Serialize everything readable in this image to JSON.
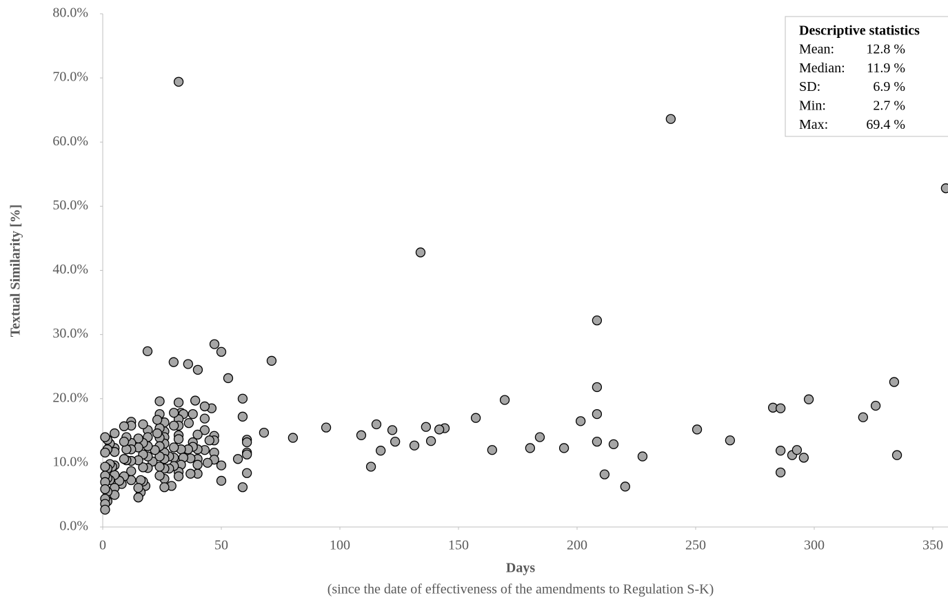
{
  "chart_data": {
    "type": "scatter",
    "xlabel": "Days",
    "xlabel_sub": "(since the date of effectiveness of the amendments to Regulation S-K)",
    "ylabel": "Textual Similarity [%]",
    "xlim": [
      0,
      356.4
    ],
    "ylim": [
      0,
      80
    ],
    "xticks": [
      0,
      50,
      100,
      150,
      200,
      250,
      300,
      350
    ],
    "yticks": [
      {
        "value": 0,
        "label": "0.0%"
      },
      {
        "value": 10,
        "label": "10.0%"
      },
      {
        "value": 20,
        "label": "20.0%"
      },
      {
        "value": 30,
        "label": "30.0%"
      },
      {
        "value": 40,
        "label": "40.0%"
      },
      {
        "value": 50,
        "label": "50.0%"
      },
      {
        "value": 60,
        "label": "60.0%"
      },
      {
        "value": 70,
        "label": "70.0%"
      },
      {
        "value": 80,
        "label": "80.0%"
      }
    ],
    "grid": false,
    "marker_color": "#a6a6a6",
    "stats": {
      "title": "Descriptive statistics",
      "rows": [
        {
          "label": "Mean:",
          "value": "12.8 %"
        },
        {
          "label": "Median:",
          "value": "11.9 %"
        },
        {
          "label": "SD:",
          "value": "6.9 %"
        },
        {
          "label": "Min:",
          "value": "2.7 %"
        },
        {
          "label": "Max:",
          "value": "69.4 %"
        }
      ]
    },
    "x": [
      32,
      239.5,
      355.5,
      134,
      208.4,
      208.4,
      208.4,
      201.5,
      208.4,
      215.4,
      211.6,
      220.3,
      227.6,
      250.6,
      264.5,
      282.6,
      285.8,
      285.8,
      285.8,
      290.7,
      292.7,
      295.6,
      297.7,
      320.6,
      325.9,
      333.7,
      334.9,
      194.5,
      184.3,
      180.2,
      169.5,
      164.2,
      157.3,
      144.2,
      141.9,
      138.4,
      136.3,
      131.4,
      123.3,
      122.1,
      117.2,
      115.4,
      113.1,
      109,
      94.2,
      80.2,
      68,
      71.2,
      52.9,
      50,
      47.1,
      40.1,
      36,
      29.9,
      18.9,
      59,
      59,
      60.8,
      60.8,
      60.8,
      60.8,
      60.8,
      59,
      57,
      50,
      50,
      45.9,
      47,
      47,
      47,
      47,
      45,
      43,
      43,
      43,
      43,
      44.2,
      40,
      40,
      40,
      40,
      40,
      39,
      38,
      36.3,
      38,
      38,
      37,
      37,
      36,
      32,
      33,
      34,
      32,
      32,
      32,
      32,
      33,
      34,
      33,
      32,
      32,
      30,
      30,
      30,
      30,
      30,
      29,
      28,
      28,
      26,
      26,
      26,
      26,
      26,
      26,
      26,
      26,
      26,
      24,
      24,
      24,
      24,
      24,
      24,
      24,
      24,
      23,
      23,
      22,
      21,
      19,
      19,
      19,
      19,
      19,
      17,
      17,
      17,
      17,
      18,
      17,
      16,
      16,
      15,
      15,
      15,
      15,
      15,
      12,
      12,
      12,
      12,
      12,
      12,
      12,
      10,
      10,
      10,
      9,
      9,
      9,
      9,
      8,
      7,
      5,
      5,
      5,
      5,
      5,
      5,
      5,
      4,
      3,
      3,
      3,
      2,
      2,
      2,
      2,
      2,
      2,
      1,
      1,
      1,
      1,
      1,
      1,
      1,
      1,
      1
    ],
    "y": [
      69.4,
      63.6,
      52.8,
      42.8,
      32.2,
      21.8,
      17.6,
      16.5,
      13.3,
      12.9,
      8.2,
      6.3,
      11.0,
      15.2,
      13.5,
      18.6,
      18.5,
      11.9,
      8.5,
      11.2,
      12.0,
      10.8,
      19.9,
      17.1,
      18.9,
      22.6,
      11.2,
      12.3,
      14.0,
      12.3,
      19.8,
      12.0,
      17.0,
      15.4,
      15.2,
      13.4,
      15.6,
      12.7,
      13.3,
      15.1,
      11.9,
      16.0,
      9.4,
      14.3,
      15.5,
      13.9,
      14.7,
      25.9,
      23.2,
      27.3,
      28.5,
      24.5,
      25.4,
      25.7,
      27.4,
      20.0,
      17.2,
      13.6,
      13.2,
      11.6,
      11.3,
      8.4,
      6.2,
      10.6,
      9.6,
      7.2,
      18.5,
      14.2,
      13.5,
      11.6,
      10.5,
      13.5,
      18.8,
      16.9,
      15.1,
      12.0,
      10.0,
      14.4,
      12.1,
      10.6,
      9.7,
      8.3,
      19.7,
      17.6,
      16.2,
      13.2,
      12.5,
      10.7,
      8.3,
      12.1,
      19.4,
      17.8,
      17.6,
      16.8,
      15.8,
      14.3,
      13.7,
      12.1,
      10.8,
      9.7,
      8.6,
      7.9,
      17.8,
      15.8,
      12.4,
      10.8,
      9.5,
      6.4,
      11.0,
      9.1,
      16.3,
      14.9,
      14.0,
      13.0,
      11.6,
      10.6,
      9.1,
      7.5,
      6.2,
      19.6,
      17.6,
      15.4,
      13.9,
      12.6,
      11.0,
      9.4,
      8.0,
      16.7,
      14.6,
      12.0,
      10.2,
      15.1,
      14.0,
      12.6,
      11.0,
      9.2,
      16.0,
      13.1,
      11.3,
      9.3,
      6.4,
      7.1,
      7.3,
      5.4,
      4.6,
      13.8,
      12.4,
      10.4,
      6.1,
      16.4,
      15.8,
      13.1,
      12.1,
      10.3,
      8.7,
      7.3,
      14.0,
      12.1,
      10.4,
      15.7,
      13.3,
      10.6,
      7.9,
      6.7,
      7.2,
      14.6,
      12.3,
      11.7,
      9.6,
      8.1,
      6.1,
      5.0,
      9.4,
      13.0,
      9.8,
      7.3,
      13.6,
      12.1,
      9.1,
      7.6,
      5.5,
      4.0,
      14.0,
      11.6,
      9.4,
      8.0,
      7.0,
      5.9,
      4.4,
      3.6,
      2.7
    ]
  }
}
